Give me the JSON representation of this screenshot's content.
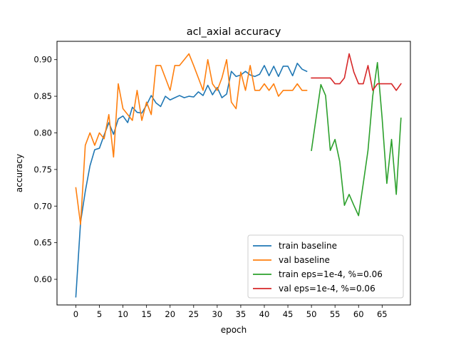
{
  "chart_data": {
    "type": "line",
    "title": "acl_axial accuracy",
    "xlabel": "epoch",
    "ylabel": "accuracy",
    "xlim": [
      -4,
      71
    ],
    "ylim": [
      0.565,
      0.925
    ],
    "xticks": [
      0,
      5,
      10,
      15,
      20,
      25,
      30,
      35,
      40,
      45,
      50,
      55,
      60,
      65
    ],
    "yticks": [
      0.6,
      0.65,
      0.7,
      0.75,
      0.8,
      0.85,
      0.9
    ],
    "ytick_labels": [
      "0.60",
      "0.65",
      "0.70",
      "0.75",
      "0.80",
      "0.85",
      "0.90"
    ],
    "grid": false,
    "legend_position": "lower-right",
    "series": [
      {
        "name": "train baseline",
        "color": "#1f77b4",
        "x": [
          0,
          1,
          2,
          3,
          4,
          5,
          6,
          7,
          8,
          9,
          10,
          11,
          12,
          13,
          14,
          15,
          16,
          17,
          18,
          19,
          20,
          21,
          22,
          23,
          24,
          25,
          26,
          27,
          28,
          29,
          30,
          31,
          32,
          33,
          34,
          35,
          36,
          37,
          38,
          39,
          40,
          41,
          42,
          43,
          44,
          45,
          46,
          47,
          48,
          49
        ],
        "y": [
          0.576,
          0.678,
          0.72,
          0.755,
          0.777,
          0.779,
          0.797,
          0.814,
          0.798,
          0.819,
          0.823,
          0.814,
          0.835,
          0.828,
          0.827,
          0.838,
          0.851,
          0.841,
          0.836,
          0.85,
          0.845,
          0.848,
          0.851,
          0.848,
          0.85,
          0.849,
          0.856,
          0.851,
          0.865,
          0.852,
          0.862,
          0.848,
          0.853,
          0.884,
          0.877,
          0.879,
          0.884,
          0.879,
          0.877,
          0.88,
          0.892,
          0.878,
          0.891,
          0.877,
          0.891,
          0.891,
          0.878,
          0.895,
          0.887,
          0.884
        ]
      },
      {
        "name": "val baseline",
        "color": "#ff7f0e",
        "x": [
          0,
          1,
          2,
          3,
          4,
          5,
          6,
          7,
          8,
          9,
          10,
          11,
          12,
          13,
          14,
          15,
          16,
          17,
          18,
          19,
          20,
          21,
          22,
          23,
          24,
          25,
          26,
          27,
          28,
          29,
          30,
          31,
          32,
          33,
          34,
          35,
          36,
          37,
          38,
          39,
          40,
          41,
          42,
          43,
          44,
          45,
          46,
          47,
          48,
          49
        ],
        "y": [
          0.725,
          0.675,
          0.783,
          0.8,
          0.783,
          0.8,
          0.792,
          0.825,
          0.767,
          0.867,
          0.833,
          0.825,
          0.817,
          0.858,
          0.817,
          0.842,
          0.825,
          0.892,
          0.892,
          0.875,
          0.858,
          0.892,
          0.892,
          0.9,
          0.908,
          0.892,
          0.875,
          0.858,
          0.9,
          0.867,
          0.858,
          0.875,
          0.9,
          0.842,
          0.833,
          0.883,
          0.858,
          0.892,
          0.858,
          0.858,
          0.867,
          0.858,
          0.867,
          0.85,
          0.858,
          0.858,
          0.858,
          0.867,
          0.858,
          0.858
        ]
      },
      {
        "name": "train eps=1e-4, %=0.06",
        "color": "#2ca02c",
        "x": [
          50,
          51,
          52,
          53,
          54,
          55,
          56,
          57,
          58,
          59,
          60,
          61,
          62,
          63,
          64,
          65,
          66,
          67,
          68,
          69
        ],
        "y": [
          0.776,
          0.821,
          0.866,
          0.851,
          0.776,
          0.791,
          0.761,
          0.701,
          0.716,
          0.701,
          0.687,
          0.731,
          0.776,
          0.85,
          0.896,
          0.82,
          0.731,
          0.791,
          0.716,
          0.82
        ]
      },
      {
        "name": "val eps=1e-4, %=0.06",
        "color": "#d62728",
        "x": [
          50,
          51,
          52,
          53,
          54,
          55,
          56,
          57,
          58,
          59,
          60,
          61,
          62,
          63,
          64,
          65,
          66,
          67,
          68,
          69
        ],
        "y": [
          0.875,
          0.875,
          0.875,
          0.875,
          0.875,
          0.867,
          0.867,
          0.875,
          0.908,
          0.883,
          0.867,
          0.867,
          0.892,
          0.858,
          0.867,
          0.867,
          0.867,
          0.867,
          0.858,
          0.867
        ]
      }
    ]
  }
}
